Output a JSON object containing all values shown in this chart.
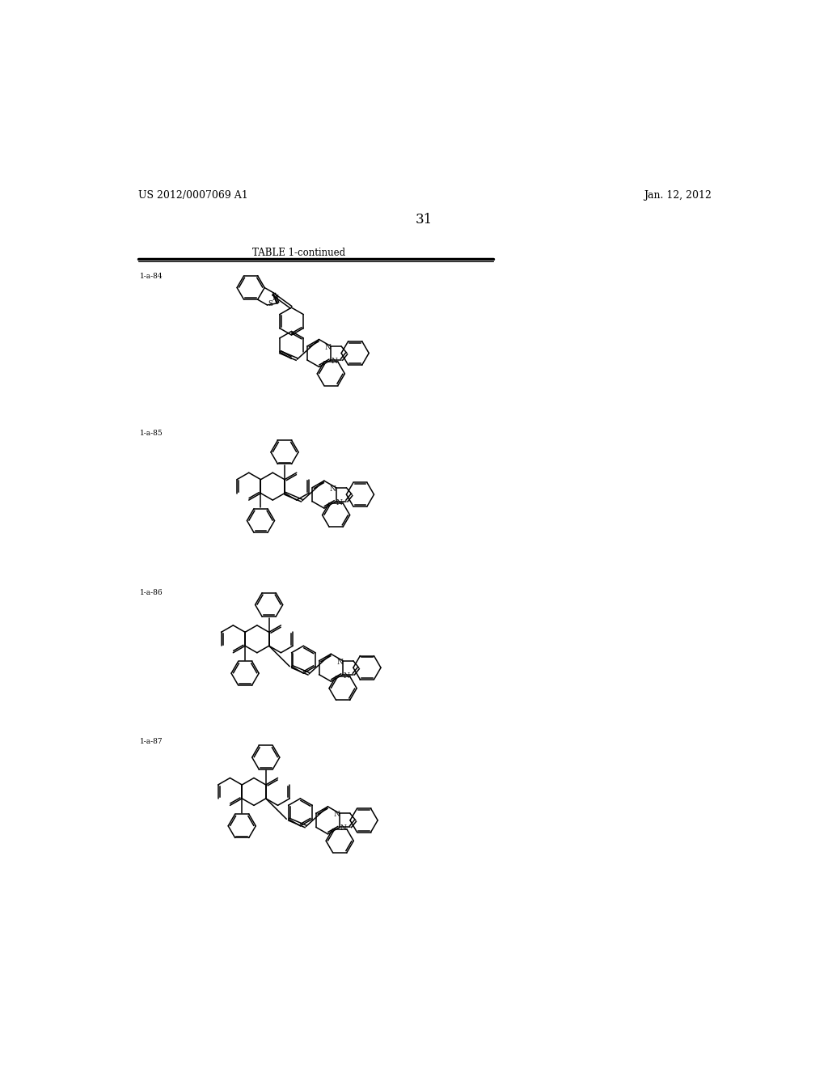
{
  "header_left": "US 2012/0007069 A1",
  "header_right": "Jan. 12, 2012",
  "page_number": "31",
  "table_title": "TABLE 1-continued",
  "compound_labels": [
    "1-a-84",
    "1-a-85",
    "1-a-86",
    "1-a-87"
  ],
  "background_color": "#ffffff",
  "text_color": "#000000",
  "line_color": "#000000",
  "figure_width": 10.24,
  "figure_height": 13.2,
  "dpi": 100
}
